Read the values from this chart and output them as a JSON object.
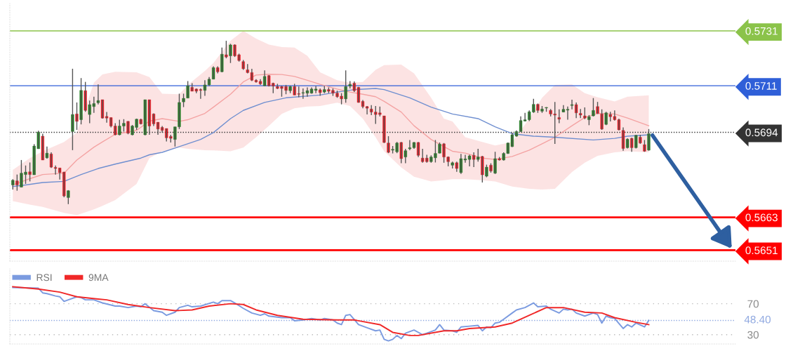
{
  "chart_data": [
    {
      "type": "candlestick",
      "categories": [
        null,
        null,
        null,
        null,
        null,
        null,
        null,
        null,
        null,
        null,
        null,
        null,
        null,
        null,
        null,
        null,
        null,
        null,
        null,
        null,
        null,
        null,
        null,
        null,
        null,
        null,
        null,
        null,
        null,
        null,
        null,
        null,
        null,
        null,
        null,
        null,
        null,
        null,
        null,
        null,
        null,
        null,
        null,
        null,
        null,
        null,
        null,
        null,
        null,
        null,
        null,
        null,
        null,
        null,
        null,
        null,
        null,
        null,
        null,
        null,
        null,
        null,
        null,
        null,
        null,
        null,
        null,
        null,
        null,
        null,
        null,
        null,
        null,
        null,
        null,
        null,
        null,
        null,
        null,
        null,
        null,
        null,
        null,
        null,
        null,
        null,
        null,
        null,
        null,
        null,
        null,
        null,
        null,
        null,
        null,
        null,
        null,
        null,
        null,
        null,
        null,
        null,
        null,
        null,
        null,
        null,
        null,
        null,
        null,
        null,
        null,
        null,
        null,
        null,
        null,
        null,
        null,
        null,
        null,
        null,
        null,
        null,
        null,
        null,
        null,
        null,
        null,
        null,
        null,
        null,
        null,
        null,
        null,
        null,
        null,
        null,
        null,
        null,
        null,
        null,
        null,
        null,
        null,
        null,
        null,
        null,
        null,
        null,
        null,
        null
      ],
      "ohlc": [
        [
          0.56748,
          0.56769,
          0.56731,
          0.56765
        ],
        [
          0.56763,
          0.56786,
          0.56727,
          0.56748
        ],
        [
          0.5674,
          0.56839,
          0.5674,
          0.56791
        ],
        [
          0.56786,
          0.56819,
          0.56752,
          0.56795
        ],
        [
          0.56796,
          0.5683,
          0.56761,
          0.56786
        ],
        [
          0.56785,
          0.56897,
          0.56785,
          0.5689
        ],
        [
          0.5688,
          0.56946,
          0.5688,
          0.56941
        ],
        [
          0.56926,
          0.56935,
          0.56839,
          0.56839
        ],
        [
          0.56847,
          0.56888,
          0.56844,
          0.56864
        ],
        [
          0.56861,
          0.56867,
          0.5681,
          0.56813
        ],
        [
          0.56812,
          0.56819,
          0.56786,
          0.56808
        ],
        [
          0.5681,
          0.5681,
          0.56768,
          0.56793
        ],
        [
          0.56795,
          0.56796,
          0.56703,
          0.56708
        ],
        [
          0.56702,
          0.56729,
          0.56678,
          0.56727
        ],
        [
          0.56943,
          0.57172,
          0.56875,
          0.57005
        ],
        [
          0.57007,
          0.57049,
          0.56949,
          0.5698
        ],
        [
          0.56986,
          0.57138,
          0.56969,
          0.57093
        ],
        [
          0.57092,
          0.57124,
          0.57015,
          0.5702
        ],
        [
          0.57005,
          0.57056,
          0.56973,
          0.57041
        ],
        [
          0.57034,
          0.5707,
          0.57011,
          0.57045
        ],
        [
          0.57048,
          0.57115,
          0.57042,
          0.57056
        ],
        [
          0.57059,
          0.57059,
          0.5699,
          0.56992
        ],
        [
          0.56998,
          0.57014,
          0.56975,
          0.56992
        ],
        [
          0.56994,
          0.56994,
          0.56958,
          0.56963
        ],
        [
          0.56963,
          0.56973,
          0.56929,
          0.56931
        ],
        [
          0.56931,
          0.56986,
          0.56929,
          0.56963
        ],
        [
          0.56963,
          0.56988,
          0.56943,
          0.56973
        ],
        [
          0.5698,
          0.56981,
          0.56933,
          0.56937
        ],
        [
          0.56931,
          0.56967,
          0.56929,
          0.56963
        ],
        [
          0.56958,
          0.5699,
          0.56949,
          0.56988
        ],
        [
          0.56987,
          0.5699,
          0.56969,
          0.56971
        ],
        [
          0.56931,
          0.57059,
          0.56929,
          0.57059
        ],
        [
          0.57059,
          0.57059,
          0.56931,
          0.56963
        ],
        [
          0.57007,
          0.57009,
          0.56963,
          0.56971
        ],
        [
          0.56977,
          0.56977,
          0.56931,
          0.56952
        ],
        [
          0.56958,
          0.56963,
          0.56939,
          0.56947
        ],
        [
          0.56954,
          0.56954,
          0.56907,
          0.5692
        ],
        [
          0.56925,
          0.56931,
          0.56903,
          0.56918
        ],
        [
          0.56914,
          0.5696,
          0.56888,
          0.5696
        ],
        [
          0.5696,
          0.57081,
          0.56952,
          0.57049
        ],
        [
          0.57051,
          0.57081,
          0.57032,
          0.57064
        ],
        [
          0.57065,
          0.57127,
          0.57065,
          0.5711
        ],
        [
          0.57104,
          0.57119,
          0.5709,
          0.5709
        ],
        [
          0.57098,
          0.571,
          0.57083,
          0.5709
        ],
        [
          0.57096,
          0.571,
          0.57062,
          0.57093
        ],
        [
          0.57093,
          0.5713,
          0.57073,
          0.57113
        ],
        [
          0.57113,
          0.57142,
          0.57109,
          0.57134
        ],
        [
          0.57134,
          0.57181,
          0.57134,
          0.57176
        ],
        [
          0.57176,
          0.57181,
          0.57155,
          0.57161
        ],
        [
          0.57161,
          0.57249,
          0.57159,
          0.57225
        ],
        [
          0.57223,
          0.57274,
          0.5721,
          0.57215
        ],
        [
          0.57219,
          0.57263,
          0.57193,
          0.57259
        ],
        [
          0.57259,
          0.57261,
          0.57215,
          0.57219
        ],
        [
          0.57223,
          0.57227,
          0.57198,
          0.57202
        ],
        [
          0.57198,
          0.57204,
          0.57168,
          0.57172
        ],
        [
          0.57168,
          0.57189,
          0.57155,
          0.57158
        ],
        [
          0.57158,
          0.57172,
          0.57127,
          0.5713
        ],
        [
          0.5713,
          0.57134,
          0.57121,
          0.57124
        ],
        [
          0.57126,
          0.57134,
          0.57113,
          0.57117
        ],
        [
          0.5711,
          0.57166,
          0.57109,
          0.57144
        ],
        [
          0.57147,
          0.57149,
          0.57107,
          0.5711
        ],
        [
          0.57119,
          0.57121,
          0.57083,
          0.57109
        ],
        [
          0.57107,
          0.57117,
          0.57098,
          0.571
        ],
        [
          0.57107,
          0.5711,
          0.5707,
          0.571
        ],
        [
          0.57107,
          0.57113,
          0.57079,
          0.57093
        ],
        [
          0.57092,
          0.5711,
          0.57083,
          0.57107
        ],
        [
          0.57107,
          0.57117,
          0.57076,
          0.57076
        ],
        [
          0.57081,
          0.57107,
          0.57068,
          0.57079
        ],
        [
          0.57083,
          0.571,
          0.57062,
          0.57085
        ],
        [
          0.57083,
          0.57104,
          0.5707,
          0.57092
        ],
        [
          0.57083,
          0.57104,
          0.57081,
          0.57098
        ],
        [
          0.57093,
          0.57109,
          0.57083,
          0.57098
        ],
        [
          0.57095,
          0.571,
          0.57073,
          0.57085
        ],
        [
          0.57087,
          0.57109,
          0.57083,
          0.57096
        ],
        [
          0.57096,
          0.57104,
          0.57083,
          0.5709
        ],
        [
          0.57093,
          0.571,
          0.57073,
          0.57083
        ],
        [
          0.57083,
          0.57092,
          0.57066,
          0.5707
        ],
        [
          0.57072,
          0.57083,
          0.57042,
          0.57062
        ],
        [
          0.57062,
          0.57166,
          0.57048,
          0.57107
        ],
        [
          0.57109,
          0.57127,
          0.571,
          0.57115
        ],
        [
          0.57119,
          0.57126,
          0.57087,
          0.57092
        ],
        [
          0.57104,
          0.57106,
          0.57048,
          0.57049
        ],
        [
          0.57053,
          0.57058,
          0.57028,
          0.57034
        ],
        [
          0.57034,
          0.57036,
          0.57005,
          0.57028
        ],
        [
          0.57025,
          0.57039,
          0.57003,
          0.57014
        ],
        [
          0.57014,
          0.57036,
          0.56971,
          0.57005
        ],
        [
          0.57011,
          0.57034,
          0.56998,
          0.57005
        ],
        [
          0.57,
          0.57,
          0.56901,
          0.56903
        ],
        [
          0.56901,
          0.56926,
          0.56864,
          0.56867
        ],
        [
          0.56875,
          0.5689,
          0.56863,
          0.56878
        ],
        [
          0.56869,
          0.56905,
          0.56864,
          0.56901
        ],
        [
          0.56903,
          0.56905,
          0.56827,
          0.56844
        ],
        [
          0.5685,
          0.5688,
          0.56827,
          0.56873
        ],
        [
          0.5688,
          0.56912,
          0.56875,
          0.56884
        ],
        [
          0.56884,
          0.56905,
          0.5688,
          0.56903
        ],
        [
          0.56903,
          0.56905,
          0.5685,
          0.56856
        ],
        [
          0.56846,
          0.5688,
          0.56829,
          0.56833
        ],
        [
          0.56846,
          0.56858,
          0.56829,
          0.56833
        ],
        [
          0.56833,
          0.56856,
          0.56829,
          0.5685
        ],
        [
          0.56847,
          0.56912,
          0.5683,
          0.56863
        ],
        [
          0.56864,
          0.56903,
          0.56863,
          0.56897
        ],
        [
          0.56898,
          0.56901,
          0.56829,
          0.5685
        ],
        [
          0.5685,
          0.56852,
          0.56816,
          0.56833
        ],
        [
          0.5682,
          0.56833,
          0.56808,
          0.56829
        ],
        [
          0.56829,
          0.56833,
          0.56796,
          0.56808
        ],
        [
          0.56793,
          0.56861,
          0.56788,
          0.56844
        ],
        [
          0.56839,
          0.56858,
          0.56829,
          0.56843
        ],
        [
          0.56841,
          0.56858,
          0.56816,
          0.56854
        ],
        [
          0.56856,
          0.56867,
          0.56813,
          0.56841
        ],
        [
          0.56841,
          0.5688,
          0.56833,
          0.5685
        ],
        [
          0.56852,
          0.56854,
          0.56757,
          0.56785
        ],
        [
          0.5678,
          0.56822,
          0.56776,
          0.56813
        ],
        [
          0.5682,
          0.56827,
          0.56793,
          0.56799
        ],
        [
          0.56791,
          0.56869,
          0.56788,
          0.56844
        ],
        [
          0.56844,
          0.5685,
          0.56837,
          0.56839
        ],
        [
          0.56839,
          0.56867,
          0.56837,
          0.56863
        ],
        [
          0.56863,
          0.56903,
          0.56861,
          0.56901
        ],
        [
          0.56888,
          0.56939,
          0.56886,
          0.56931
        ],
        [
          0.56926,
          0.56947,
          0.56924,
          0.56943
        ],
        [
          0.56943,
          0.56998,
          0.56941,
          0.56983
        ],
        [
          0.56981,
          0.57011,
          0.5698,
          0.56986
        ],
        [
          0.56986,
          0.5702,
          0.56981,
          0.57015
        ],
        [
          0.57014,
          0.57062,
          0.57011,
          0.57042
        ],
        [
          0.57042,
          0.57045,
          0.57011,
          0.5702
        ],
        [
          0.57017,
          0.57036,
          0.57011,
          0.57025
        ],
        [
          0.57029,
          0.57032,
          0.57015,
          0.57031
        ],
        [
          0.5702,
          0.57025,
          0.56998,
          0.57007
        ],
        [
          0.57007,
          0.57051,
          0.56898,
          0.57003
        ],
        [
          0.56994,
          0.57024,
          0.56973,
          0.56988
        ],
        [
          0.57014,
          0.57039,
          0.57013,
          0.57024
        ],
        [
          0.57021,
          0.57034,
          0.56986,
          0.57024
        ],
        [
          0.57038,
          0.57059,
          0.57024,
          0.57041
        ],
        [
          0.57041,
          0.57049,
          0.56992,
          0.57011
        ],
        [
          0.57009,
          0.57025,
          0.56992,
          0.57003
        ],
        [
          0.57,
          0.57031,
          0.56988,
          0.56992
        ],
        [
          0.56986,
          0.57003,
          0.56966,
          0.56997
        ],
        [
          0.57,
          0.57065,
          0.56998,
          0.5702
        ],
        [
          0.57034,
          0.57051,
          0.57007,
          0.57009
        ],
        [
          0.57007,
          0.57024,
          0.56949,
          0.56952
        ],
        [
          0.56969,
          0.57015,
          0.56966,
          0.57011
        ],
        [
          0.57005,
          0.57015,
          0.5698,
          0.56997
        ],
        [
          0.56998,
          0.5702,
          0.56983,
          0.56986
        ],
        [
          0.56986,
          0.5699,
          0.56947,
          0.56949
        ],
        [
          0.56947,
          0.56958,
          0.56873,
          0.56881
        ],
        [
          0.56884,
          0.56918,
          0.56881,
          0.56915
        ],
        [
          0.56918,
          0.5692,
          0.56869,
          0.56884
        ],
        [
          0.56884,
          0.56931,
          0.56881,
          0.56929
        ],
        [
          0.56922,
          0.56931,
          0.56898,
          0.56901
        ],
        [
          0.56895,
          0.56912,
          0.56869,
          0.56871
        ],
        [
          0.56875,
          0.56952,
          0.56873,
          0.56935
        ]
      ],
      "ylim": [
        0.5647,
        0.5741
      ],
      "yticks": [
        0.5651,
        0.5663,
        0.5694,
        0.5711,
        0.5731
      ],
      "tick_labels": "y",
      "series": [
        {
          "type": "line",
          "color": "#f4a3a3",
          "values": [
            0.56748,
            null,
            null,
            null,
            0.56771,
            null,
            null,
            0.56786,
            null,
            null,
            null,
            null,
            0.56791,
            null,
            null,
            0.56839,
            null,
            null,
            null,
            0.56886,
            null,
            0.56905,
            null,
            null,
            0.56933,
            null,
            null,
            null,
            null,
            0.56947,
            null,
            null,
            0.56981,
            null,
            null,
            0.5699,
            null,
            null,
            null,
            0.5698,
            null,
            0.56986,
            null,
            null,
            null,
            0.57009,
            null,
            0.57032,
            null,
            null,
            null,
            0.57079,
            null,
            null,
            0.57124,
            null,
            null,
            0.57149,
            null,
            null,
            0.57152,
            null,
            null,
            0.57151,
            null,
            null,
            0.57144,
            null,
            null,
            0.5713,
            null,
            null,
            0.57115,
            null,
            null,
            null,
            0.57098,
            null,
            null,
            0.57087,
            null,
            null,
            0.57079,
            null,
            null,
            0.5707,
            null,
            0.57053,
            null,
            null,
            null,
            0.57014,
            null,
            null,
            0.56964,
            null,
            null,
            null,
            0.56914,
            null,
            null,
            0.56888,
            null,
            0.56871,
            null,
            null,
            0.56864,
            null,
            null,
            null,
            0.56846,
            null,
            null,
            0.56841,
            null,
            null,
            null,
            0.56852,
            null,
            null,
            null,
            0.56875,
            null,
            null,
            0.56898,
            null,
            null,
            0.56922,
            null,
            null,
            null,
            0.56964,
            null,
            null,
            0.56994,
            null,
            null,
            0.57009,
            null,
            null,
            null,
            0.57007,
            null,
            null,
            0.56992,
            null,
            null,
            null,
            null,
            0.56964
          ],
          "upper": [
            0.56803,
            null,
            null,
            null,
            0.56846,
            null,
            null,
            0.56871,
            null,
            null,
            null,
            null,
            0.56905,
            null,
            null,
            0.56939,
            null,
            null,
            null,
            0.57121,
            null,
            0.57151,
            null,
            null,
            0.57161,
            null,
            null,
            null,
            null,
            0.57159,
            null,
            null,
            0.57142,
            null,
            null,
            0.57081,
            null,
            null,
            null,
            0.57079,
            null,
            0.57113,
            null,
            null,
            null,
            0.57164,
            null,
            0.57193,
            null,
            null,
            null,
            0.57274,
            null,
            null,
            0.5731,
            null,
            null,
            0.57282,
            null,
            null,
            0.5726,
            null,
            null,
            0.57251,
            null,
            null,
            0.57249,
            null,
            null,
            0.57219,
            null,
            null,
            0.57159,
            null,
            null,
            null,
            0.5713,
            null,
            null,
            0.57121,
            null,
            null,
            0.57124,
            null,
            null,
            0.57168,
            null,
            0.57185,
            null,
            null,
            null,
            0.57187,
            null,
            null,
            0.57155,
            null,
            null,
            null,
            0.57066,
            null,
            null,
            0.5699,
            null,
            0.5698,
            null,
            null,
            0.56922,
            null,
            null,
            null,
            0.56905,
            null,
            null,
            0.56892,
            null,
            null,
            null,
            0.56905,
            null,
            null,
            null,
            0.5699,
            null,
            null,
            0.57066,
            null,
            null,
            0.57113,
            null,
            null,
            null,
            0.57115,
            null,
            null,
            0.57083,
            null,
            null,
            0.57068,
            null,
            null,
            null,
            0.57053,
            null,
            null,
            0.5707,
            null,
            null,
            null,
            null,
            0.57075
          ],
          "lower": [
            0.56689,
            null,
            null,
            null,
            0.56676,
            null,
            null,
            0.56668,
            null,
            null,
            null,
            null,
            0.56646,
            null,
            null,
            0.56638,
            null,
            null,
            null,
            0.56659,
            null,
            0.56672,
            null,
            null,
            0.56693,
            null,
            null,
            null,
            null,
            0.56752,
            null,
            null,
            0.56846,
            null,
            null,
            0.56871,
            null,
            null,
            null,
            0.56884,
            null,
            0.5688,
            null,
            null,
            null,
            0.56875,
            null,
            0.56874,
            null,
            null,
            null,
            0.56871,
            null,
            null,
            0.56884,
            null,
            null,
            0.56922,
            null,
            null,
            0.56964,
            null,
            null,
            0.57007,
            null,
            null,
            0.57028,
            null,
            null,
            0.57034,
            null,
            null,
            0.57036,
            null,
            null,
            null,
            0.57048,
            null,
            null,
            0.57036,
            null,
            null,
            0.5699,
            null,
            null,
            0.56922,
            null,
            0.56871,
            null,
            null,
            null,
            0.56812,
            null,
            null,
            0.56778,
            null,
            null,
            null,
            0.56761,
            null,
            null,
            0.56765,
            null,
            0.56769,
            null,
            null,
            0.56769,
            null,
            null,
            null,
            0.56765,
            null,
            null,
            0.56761,
            null,
            null,
            null,
            0.56742,
            null,
            null,
            null,
            0.56734,
            null,
            null,
            0.56731,
            null,
            null,
            0.56734,
            null,
            null,
            null,
            0.56795,
            null,
            null,
            0.56829,
            null,
            null,
            0.56854,
            null,
            null,
            null,
            0.56867,
            null,
            null,
            0.56871,
            null,
            null,
            null,
            null,
            0.56867
          ]
        },
        {
          "type": "line",
          "color": "#6f8fd0",
          "values": [
            0.56742,
            null,
            null,
            0.56748,
            null,
            null,
            null,
            0.56757,
            null,
            null,
            null,
            null,
            0.56761,
            null,
            null,
            null,
            0.56786,
            null,
            null,
            null,
            0.56808,
            null,
            null,
            null,
            0.56824,
            null,
            null,
            null,
            null,
            null,
            0.56846,
            null,
            0.56858,
            null,
            null,
            0.56867,
            null,
            null,
            null,
            0.56888,
            null,
            null,
            null,
            null,
            0.56914,
            null,
            null,
            0.56939,
            null,
            null,
            null,
            0.5699,
            null,
            null,
            0.5702,
            null,
            null,
            null,
            null,
            0.57049,
            null,
            null,
            null,
            null,
            0.57066,
            null,
            null,
            null,
            null,
            null,
            null,
            null,
            0.57076,
            null,
            null,
            null,
            0.57087,
            null,
            null,
            null,
            0.57096,
            null,
            null,
            null,
            null,
            0.571,
            null,
            0.57096,
            null,
            null,
            null,
            null,
            null,
            0.57066,
            null,
            null,
            null,
            null,
            0.57032,
            null,
            null,
            null,
            null,
            0.57007,
            null,
            null,
            null,
            null,
            null,
            0.5699,
            null,
            null,
            null,
            0.5696,
            null,
            null,
            null,
            0.56935,
            null,
            null,
            null,
            null,
            0.56926,
            null,
            null,
            null,
            null,
            0.56922,
            null,
            null,
            null,
            null,
            null,
            null,
            null,
            null,
            0.56912,
            null,
            null,
            null,
            null,
            0.56918,
            null,
            null,
            0.56926,
            null,
            null,
            null,
            null,
            0.56931
          ]
        }
      ],
      "ref_lines": [
        {
          "axis": "y",
          "value": 0.5731,
          "color": "#8bc34a",
          "line_style": "solid"
        },
        {
          "axis": "y",
          "value": 0.5711,
          "color": "#2f5fd8",
          "line_style": "solid"
        },
        {
          "axis": "y",
          "value": 0.5694,
          "color": "#333333",
          "line_style": "dotted"
        },
        {
          "axis": "y",
          "value": 0.5663,
          "color": "#ff0000",
          "line_style": "solid"
        },
        {
          "axis": "y",
          "value": 0.5651,
          "color": "#ff0000",
          "line_style": "solid"
        }
      ]
    },
    {
      "type": "line",
      "categories": [
        null,
        null,
        null,
        null,
        null,
        null,
        null,
        null,
        null,
        null,
        null,
        null,
        null,
        null,
        null,
        null,
        null,
        null,
        null,
        null,
        null,
        null,
        null,
        null,
        null,
        null,
        null,
        null,
        null,
        null,
        null,
        null,
        null,
        null,
        null,
        null,
        null,
        null,
        null,
        null,
        null,
        null,
        null,
        null,
        null,
        null,
        null,
        null,
        null,
        null,
        null,
        null,
        null,
        null,
        null,
        null,
        null,
        null,
        null,
        null,
        null,
        null,
        null,
        null,
        null,
        null,
        null,
        null,
        null,
        null,
        null,
        null,
        null,
        null,
        null,
        null,
        null,
        null,
        null,
        null,
        null,
        null,
        null,
        null,
        null,
        null,
        null,
        null,
        null,
        null,
        null,
        null,
        null,
        null,
        null,
        null,
        null,
        null,
        null,
        null,
        null,
        null,
        null,
        null,
        null,
        null,
        null,
        null,
        null,
        null,
        null,
        null,
        null,
        null,
        null,
        null,
        null,
        null,
        null,
        null,
        null,
        null,
        null,
        null,
        null,
        null,
        null,
        null,
        null,
        null,
        null,
        null,
        null,
        null,
        null,
        null,
        null,
        null,
        null,
        null,
        null,
        null,
        null,
        null,
        null,
        null,
        null,
        null,
        null,
        null
      ],
      "ylim": [
        18,
        115
      ],
      "yticks": [
        70,
        30
      ],
      "tick_labels": "y",
      "grid": "y",
      "legend": "top left",
      "series": [
        {
          "name": "RSI",
          "color": "#7b9be0",
          "values": [
            91,
            null,
            null,
            null,
            null,
            null,
            90,
            84,
            83,
            null,
            80,
            79,
            73,
            75,
            null,
            79,
            78,
            75,
            null,
            75,
            null,
            71,
            null,
            null,
            67,
            67,
            null,
            65,
            null,
            67,
            66,
            70,
            null,
            61,
            null,
            59,
            55,
            null,
            59,
            65,
            null,
            68,
            66,
            null,
            67,
            null,
            null,
            72,
            70,
            74,
            null,
            74,
            71,
            null,
            64,
            null,
            58,
            null,
            55,
            57,
            54,
            null,
            null,
            52,
            null,
            52,
            48,
            null,
            49,
            null,
            51,
            null,
            49,
            51,
            null,
            49,
            45,
            43,
            55,
            56,
            null,
            43,
            null,
            39,
            null,
            35,
            36,
            24,
            22,
            24,
            29,
            25,
            32,
            null,
            36,
            null,
            30,
            32,
            null,
            36,
            43,
            36,
            null,
            35,
            33,
            40,
            null,
            41,
            null,
            42,
            35,
            40,
            39,
            45,
            46,
            50,
            null,
            58,
            62,
            null,
            65,
            null,
            71,
            66,
            null,
            67,
            63,
            null,
            58,
            63,
            62,
            63,
            58,
            null,
            54,
            null,
            58,
            56,
            45,
            54,
            52,
            51,
            null,
            38,
            43,
            40,
            45,
            null,
            40,
            48.4
          ]
        },
        {
          "name": "9MA",
          "color": "#f02828",
          "values": [
            92,
            null,
            null,
            null,
            null,
            null,
            89,
            null,
            null,
            null,
            null,
            85,
            null,
            null,
            null,
            79,
            null,
            null,
            null,
            null,
            76,
            null,
            75,
            null,
            null,
            null,
            null,
            69,
            null,
            null,
            null,
            null,
            65,
            null,
            null,
            null,
            null,
            null,
            61,
            null,
            null,
            null,
            62,
            null,
            null,
            null,
            67,
            null,
            null,
            null,
            null,
            70,
            null,
            null,
            69,
            null,
            null,
            62,
            null,
            null,
            null,
            null,
            55,
            null,
            null,
            null,
            null,
            null,
            50,
            null,
            null,
            null,
            null,
            null,
            null,
            null,
            49,
            null,
            null,
            null,
            49,
            null,
            null,
            null,
            null,
            null,
            43,
            null,
            null,
            33,
            null,
            null,
            null,
            29,
            null,
            29,
            null,
            null,
            null,
            null,
            null,
            35,
            null,
            null,
            35,
            null,
            null,
            38,
            null,
            null,
            null,
            null,
            null,
            40,
            null,
            null,
            null,
            45,
            null,
            null,
            null,
            55,
            null,
            null,
            null,
            65,
            null,
            null,
            null,
            65,
            null,
            null,
            null,
            null,
            59,
            null,
            null,
            null,
            58,
            null,
            null,
            52,
            null,
            null,
            null,
            null,
            46,
            null,
            null,
            43
          ]
        }
      ],
      "ref_lines": [
        {
          "axis": "y",
          "value": 48.4,
          "label": "48.40",
          "color": "#8fa8e0",
          "line_style": "dotted"
        }
      ]
    }
  ]
}
